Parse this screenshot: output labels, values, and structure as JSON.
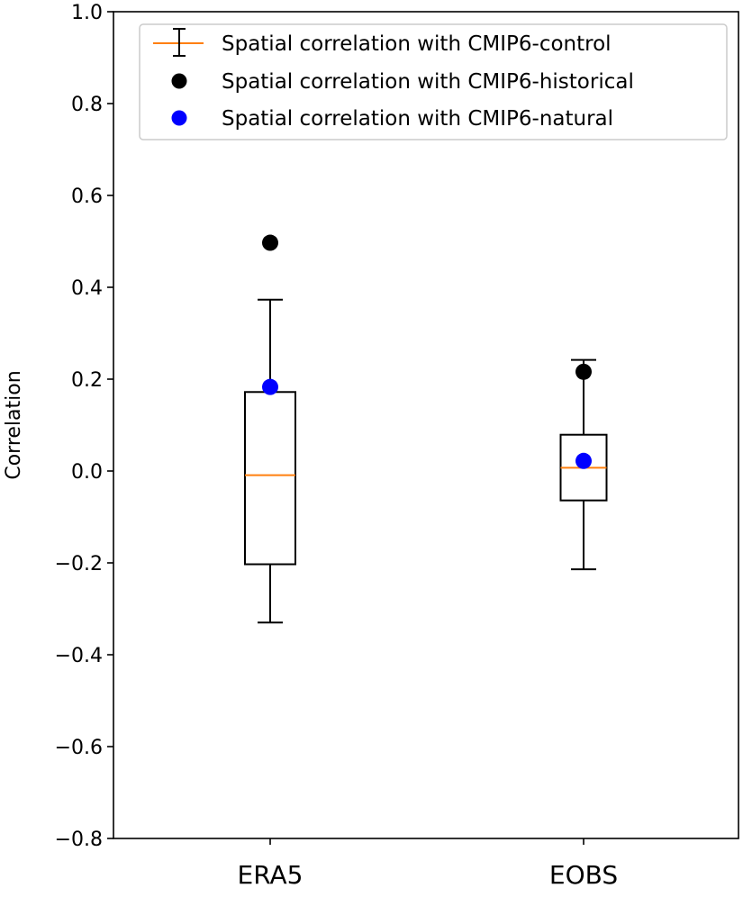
{
  "chart_data": {
    "type": "box",
    "title": "",
    "xlabel": "",
    "ylabel": "Correlation",
    "ylim": [
      -0.8,
      1.0
    ],
    "yticks": [
      -0.8,
      -0.6,
      -0.4,
      -0.2,
      0.0,
      0.2,
      0.4,
      0.6,
      0.8,
      1.0
    ],
    "ytick_labels": [
      "−0.8",
      "−0.6",
      "−0.4",
      "−0.2",
      "0.0",
      "0.2",
      "0.4",
      "0.6",
      "0.8",
      "1.0"
    ],
    "categories": [
      "ERA5",
      "EOBS"
    ],
    "grid": false,
    "legend_position": "top-right",
    "boxes": [
      {
        "category": "ERA5",
        "whisker_low": -0.33,
        "q1": -0.203,
        "median": -0.009,
        "q3": 0.172,
        "whisker_high": 0.373
      },
      {
        "category": "EOBS",
        "whisker_low": -0.214,
        "q1": -0.064,
        "median": 0.007,
        "q3": 0.079,
        "whisker_high": 0.242
      }
    ],
    "series": [
      {
        "name": "Spatial correlation with CMIP6-control",
        "kind": "boxplot",
        "color": "#ff7f0e"
      },
      {
        "name": "Spatial correlation with CMIP6-historical",
        "kind": "point",
        "color": "#000000",
        "values": [
          0.497,
          0.216
        ]
      },
      {
        "name": "Spatial correlation with CMIP6-natural",
        "kind": "point",
        "color": "#0000ff",
        "values": [
          0.183,
          0.022
        ]
      }
    ]
  }
}
